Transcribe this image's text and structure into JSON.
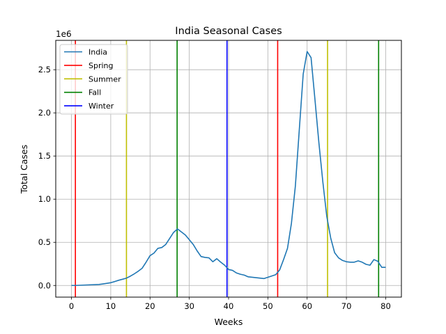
{
  "chart_data": {
    "type": "line",
    "title": "India Seasonal Cases",
    "xlabel": "Weeks",
    "ylabel": "Total Cases",
    "y_offset_label": "1e6",
    "xlim": [
      -4,
      84
    ],
    "ylim": [
      -0.135,
      2.84
    ],
    "x_ticks": [
      0,
      10,
      20,
      30,
      40,
      50,
      60,
      70,
      80
    ],
    "x_tick_labels": [
      "0",
      "10",
      "20",
      "30",
      "40",
      "50",
      "60",
      "70",
      "80"
    ],
    "y_ticks": [
      0,
      0.5,
      1.0,
      1.5,
      2.0,
      2.5
    ],
    "y_tick_labels": [
      "0.0",
      "0.5",
      "1.0",
      "1.5",
      "2.0",
      "2.5"
    ],
    "grid": true,
    "legend_position": "top-left",
    "series": [
      {
        "name": "India",
        "color": "#1f77b4",
        "x": [
          0,
          1,
          2,
          3,
          4,
          5,
          6,
          7,
          8,
          9,
          10,
          11,
          12,
          13,
          14,
          15,
          16,
          17,
          18,
          19,
          20,
          21,
          22,
          23,
          24,
          25,
          26,
          27,
          28,
          29,
          30,
          31,
          32,
          33,
          34,
          35,
          36,
          37,
          38,
          39,
          40,
          41,
          42,
          43,
          44,
          45,
          46,
          47,
          48,
          49,
          50,
          51,
          52,
          53,
          54,
          55,
          56,
          57,
          58,
          59,
          60,
          61,
          62,
          63,
          64,
          65,
          66,
          67,
          68,
          69,
          70,
          71,
          72,
          73,
          74,
          75,
          76,
          77,
          78,
          79,
          80
        ],
        "values": [
          0.0,
          0.0,
          0.002,
          0.004,
          0.006,
          0.008,
          0.01,
          0.012,
          0.018,
          0.025,
          0.032,
          0.045,
          0.06,
          0.072,
          0.085,
          0.108,
          0.135,
          0.165,
          0.2,
          0.27,
          0.345,
          0.375,
          0.43,
          0.44,
          0.475,
          0.545,
          0.615,
          0.655,
          0.62,
          0.585,
          0.53,
          0.475,
          0.4,
          0.335,
          0.325,
          0.32,
          0.275,
          0.31,
          0.27,
          0.235,
          0.185,
          0.175,
          0.145,
          0.13,
          0.12,
          0.1,
          0.095,
          0.09,
          0.085,
          0.08,
          0.095,
          0.11,
          0.125,
          0.18,
          0.3,
          0.43,
          0.72,
          1.15,
          1.8,
          2.45,
          2.71,
          2.64,
          2.15,
          1.65,
          1.2,
          0.8,
          0.55,
          0.38,
          0.32,
          0.29,
          0.275,
          0.27,
          0.27,
          0.285,
          0.27,
          0.245,
          0.235,
          0.3,
          0.28,
          0.21,
          0.21
        ]
      }
    ],
    "markers": [
      {
        "name": "Spring",
        "color": "#ff0000",
        "x": [
          1,
          52.5
        ]
      },
      {
        "name": "Summer",
        "color": "#bfbf00",
        "x": [
          14,
          65.2
        ]
      },
      {
        "name": "Fall",
        "color": "#008000",
        "x": [
          26.9,
          78.2
        ]
      },
      {
        "name": "Winter",
        "color": "#0000ff",
        "x": [
          39.6
        ]
      }
    ]
  }
}
